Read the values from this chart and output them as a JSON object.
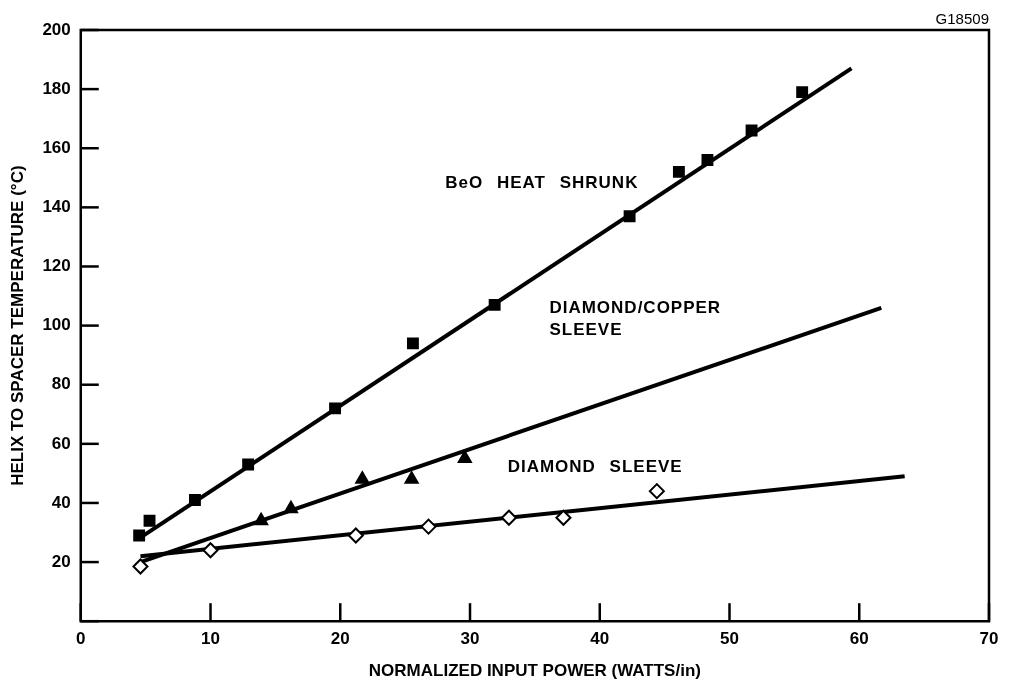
{
  "chart_data": {
    "type": "scatter",
    "xlabel": "NORMALIZED INPUT POWER (WATTS/in)",
    "ylabel": "HELIX TO SPACER TEMPERATURE (°C)",
    "xlim": [
      0,
      70
    ],
    "xticks": [
      0,
      10,
      20,
      30,
      40,
      50,
      60,
      70
    ],
    "ylim": [
      0,
      200
    ],
    "yticks": [
      {
        "value": 0,
        "label": null
      },
      20,
      40,
      60,
      80,
      100,
      120,
      140,
      160,
      180,
      200
    ],
    "grid": false,
    "legend": false,
    "series": [
      {
        "marker": "square",
        "color": "#000000",
        "x": [
          4.5,
          5.3,
          8.8,
          12.9,
          19.6,
          25.6,
          31.9,
          42.3,
          46.1,
          48.3,
          51.7,
          55.6
        ],
        "values": [
          29,
          34,
          41,
          53,
          72,
          94,
          107,
          137,
          152,
          156,
          166,
          179
        ]
      },
      {
        "marker": "triangle",
        "color": "#000000",
        "x": [
          13.9,
          16.2,
          21.7,
          25.5,
          29.6
        ],
        "values": [
          34,
          38,
          48,
          48,
          55
        ]
      },
      {
        "marker": "diamond",
        "color": "#000000",
        "x": [
          4.6,
          10,
          21.2,
          26.8,
          33,
          37.2,
          44.4
        ],
        "values": [
          18.5,
          24,
          29,
          32,
          35,
          35,
          44
        ]
      },
      {
        "type": "line",
        "name": "BeO HEAT SHRUNK",
        "marker": "none",
        "color": "#000000",
        "x": [
          4.5,
          59.4
        ],
        "values": [
          28,
          187
        ]
      },
      {
        "type": "line",
        "name": "DIAMOND/COPPER SLEEVE",
        "marker": "none",
        "color": "#000000",
        "x": [
          4.6,
          61.7
        ],
        "values": [
          20,
          106
        ]
      },
      {
        "type": "line",
        "name": "DIAMOND SLEEVE",
        "marker": "none",
        "color": "#000000",
        "x": [
          4.6,
          63.5
        ],
        "values": [
          22,
          49
        ]
      }
    ],
    "annotations": [
      "G18509"
    ]
  }
}
